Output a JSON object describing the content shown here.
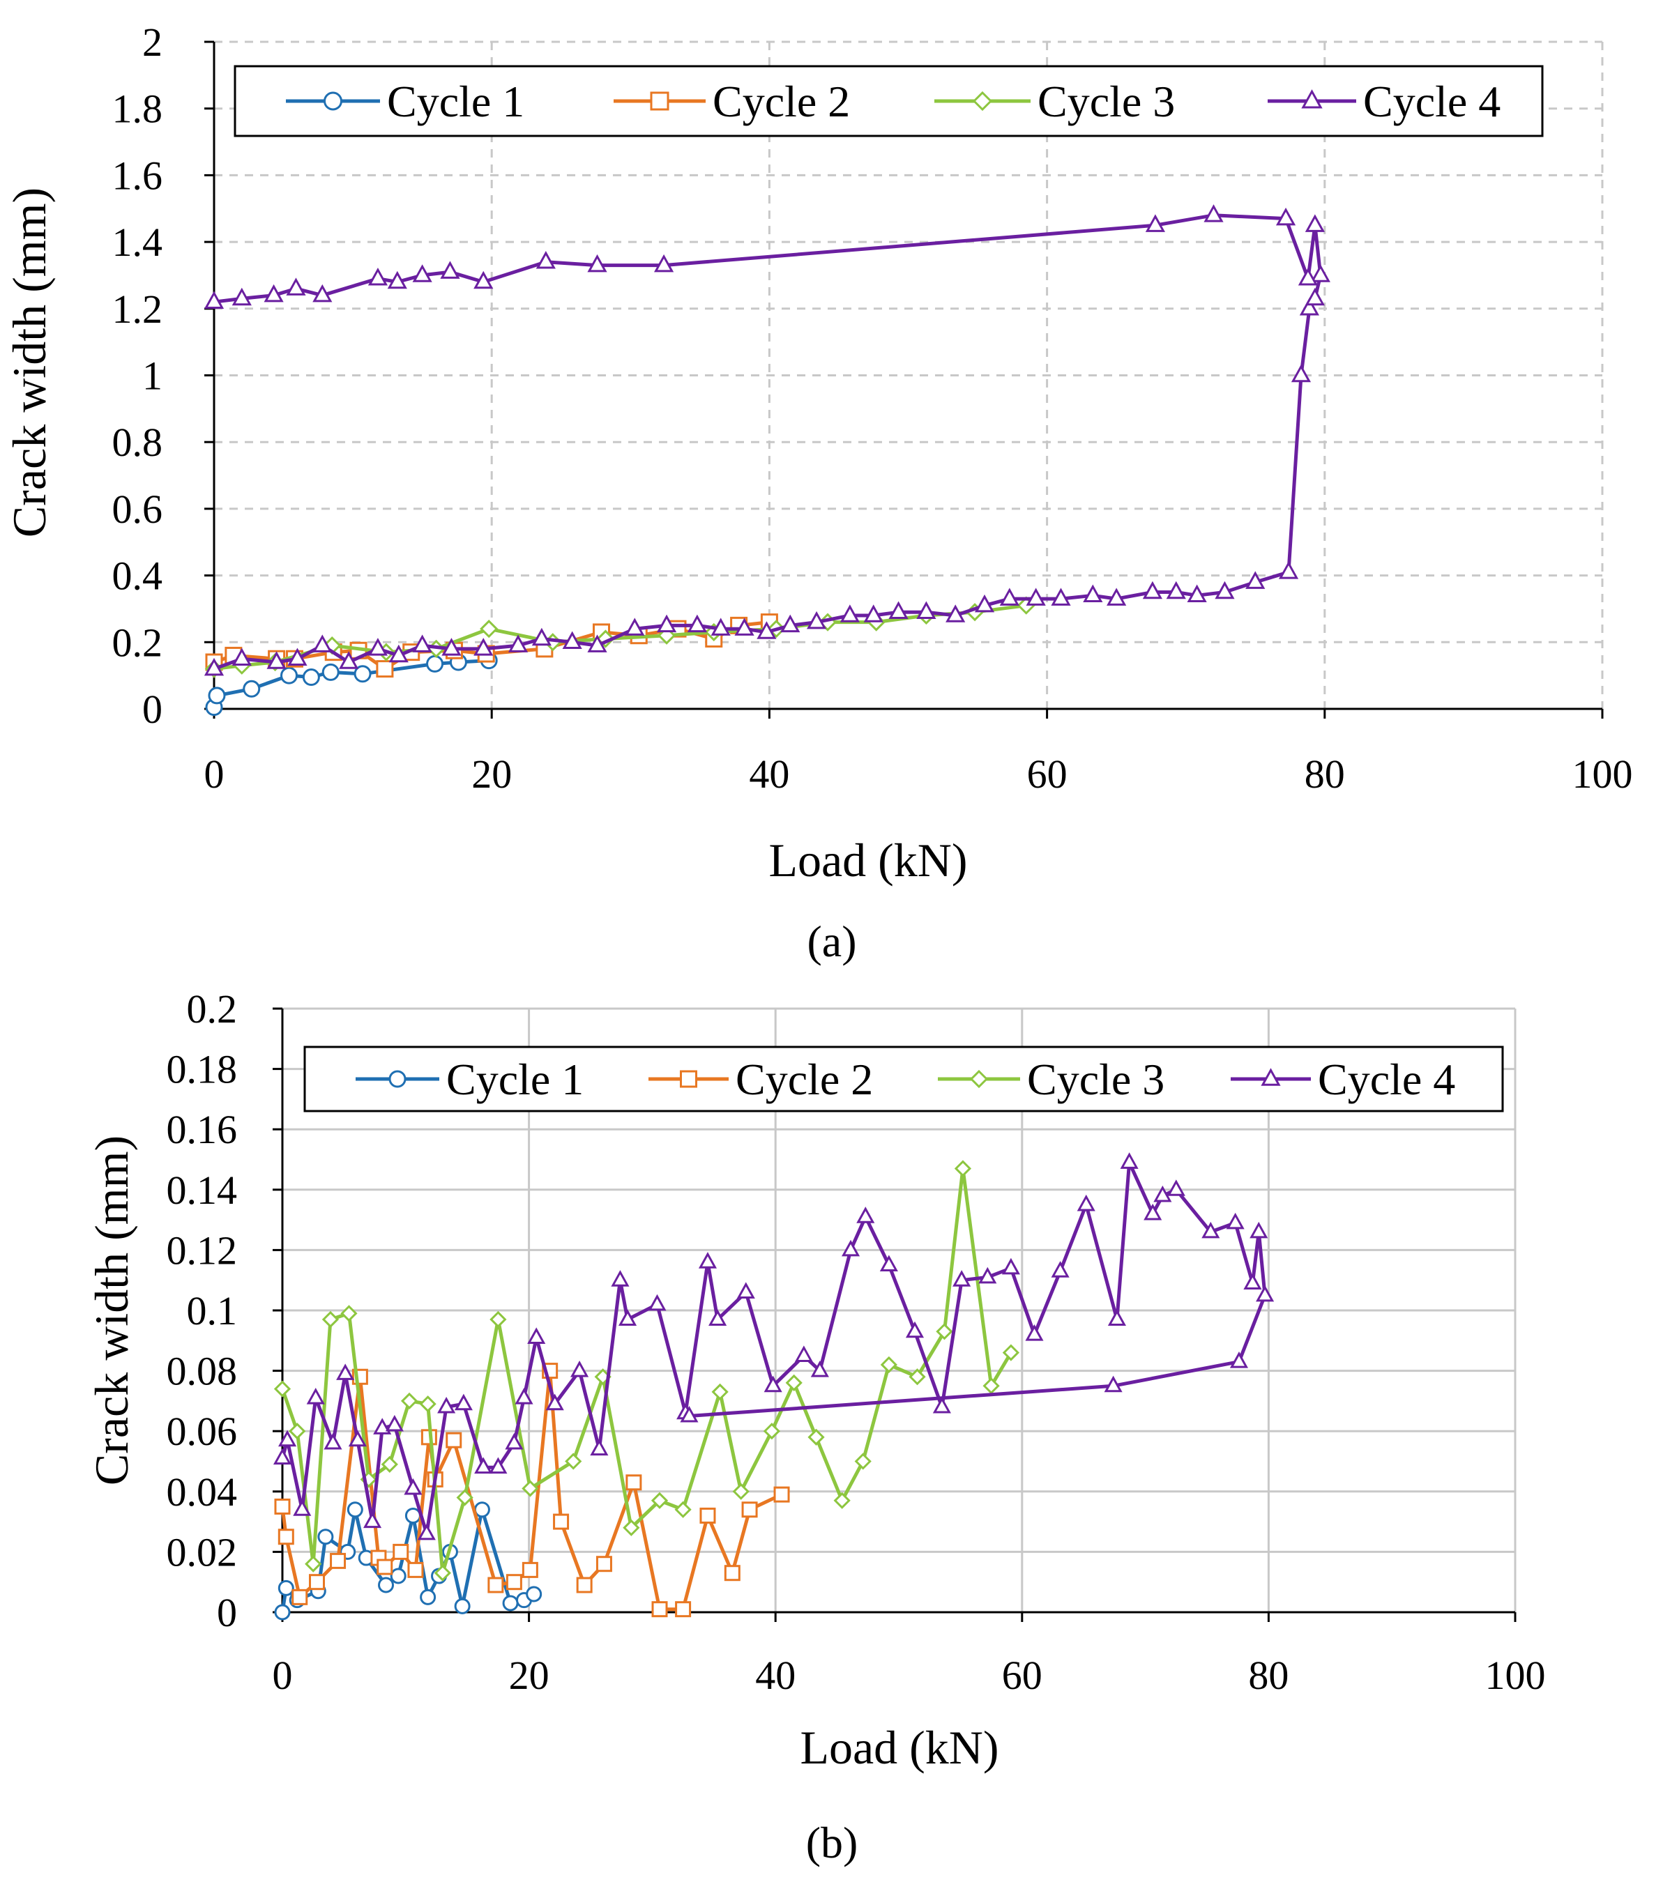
{
  "figure": {
    "panel_a_caption": "(a)",
    "panel_b_caption": "(b)"
  },
  "colors": {
    "Cycle 1": "#1F6FB2",
    "Cycle 2": "#E87722",
    "Cycle 3": "#8DC63F",
    "Cycle 4": "#6A1FA0"
  },
  "chart_data": [
    {
      "id": "a",
      "type": "line",
      "title": "",
      "xlabel": "Load (kN)",
      "ylabel": "Crack width (mm)",
      "xlim": [
        0,
        100
      ],
      "ylim": [
        0,
        2
      ],
      "xticks": [
        0,
        20,
        40,
        60,
        80,
        100
      ],
      "yticks": [
        0,
        0.2,
        0.4,
        0.6,
        0.8,
        1,
        1.2,
        1.4,
        1.6,
        1.8,
        2
      ],
      "ytick_labels": [
        "0",
        "0.2",
        "0.4",
        "0.6",
        "0.8",
        "1",
        "1.2",
        "1.4",
        "1.6",
        "1.8",
        "2"
      ],
      "xtick_labels": [
        "0",
        "20",
        "40",
        "60",
        "80",
        "100"
      ],
      "grid": "dashed",
      "legend": "top",
      "series": [
        {
          "name": "Cycle 1",
          "marker": "circle",
          "x": [
            0,
            0.2,
            2.7,
            5.4,
            7,
            8.4,
            10.7,
            15.9,
            17.6,
            19.8
          ],
          "y": [
            0.005,
            0.04,
            0.06,
            0.1,
            0.095,
            0.11,
            0.105,
            0.135,
            0.14,
            0.145
          ]
        },
        {
          "name": "Cycle 2",
          "marker": "square",
          "x": [
            0,
            1.4,
            4.5,
            5.8,
            8.6,
            10.4,
            12.3,
            14.2,
            17.3,
            19.6,
            23.8,
            27.9,
            30.6,
            33.4,
            36,
            37.8,
            40
          ],
          "y": [
            0.14,
            0.16,
            0.15,
            0.15,
            0.17,
            0.175,
            0.12,
            0.17,
            0.175,
            0.165,
            0.18,
            0.23,
            0.22,
            0.24,
            0.21,
            0.25,
            0.26
          ]
        },
        {
          "name": "Cycle 3",
          "marker": "diamond",
          "x": [
            0,
            2,
            4.4,
            8.5,
            12.4,
            16,
            19.8,
            24.4,
            28.2,
            32.6,
            36,
            40.5,
            44.2,
            47.7,
            51.3,
            54.8,
            58.5
          ],
          "y": [
            0.12,
            0.13,
            0.14,
            0.19,
            0.17,
            0.18,
            0.24,
            0.2,
            0.21,
            0.22,
            0.23,
            0.24,
            0.26,
            0.26,
            0.28,
            0.29,
            0.31
          ]
        },
        {
          "name": "Cycle 4",
          "marker": "triangle",
          "x": [
            0,
            2,
            4.5,
            6,
            7.8,
            9.7,
            11.8,
            13.3,
            15,
            17.1,
            19.4,
            21.9,
            23.6,
            25.8,
            27.6,
            30.3,
            32.6,
            34.8,
            36.5,
            38.2,
            39.8,
            41.5,
            43.4,
            45.8,
            47.5,
            49.3,
            51.3,
            53.4,
            55.5,
            57.3,
            59.2,
            61,
            63.3,
            65,
            67.6,
            69.3,
            70.8,
            72.8,
            75,
            77.4,
            78.3,
            78.9,
            79.3,
            79.7,
            79.3,
            78.8,
            77.2,
            72,
            67.8,
            32.4,
            27.6,
            23.9,
            19.4,
            17,
            15,
            13.2,
            11.8,
            7.8,
            5.9,
            4.3,
            2,
            0
          ],
          "y": [
            0.12,
            0.15,
            0.14,
            0.15,
            0.19,
            0.14,
            0.18,
            0.16,
            0.19,
            0.18,
            0.18,
            0.19,
            0.21,
            0.2,
            0.19,
            0.24,
            0.25,
            0.25,
            0.24,
            0.24,
            0.23,
            0.25,
            0.26,
            0.28,
            0.28,
            0.29,
            0.29,
            0.28,
            0.31,
            0.33,
            0.33,
            0.33,
            0.34,
            0.33,
            0.35,
            0.35,
            0.34,
            0.35,
            0.38,
            0.41,
            1.0,
            1.2,
            1.23,
            1.3,
            1.45,
            1.29,
            1.47,
            1.48,
            1.45,
            1.33,
            1.33,
            1.34,
            1.28,
            1.31,
            1.3,
            1.28,
            1.29,
            1.24,
            1.26,
            1.24,
            1.23,
            1.22
          ]
        }
      ]
    },
    {
      "id": "b",
      "type": "line",
      "title": "",
      "xlabel": "Load (kN)",
      "ylabel": "Crack width (mm)",
      "xlim": [
        0,
        100
      ],
      "ylim": [
        0,
        0.2
      ],
      "xticks": [
        0,
        20,
        40,
        60,
        80,
        100
      ],
      "yticks": [
        0,
        0.02,
        0.04,
        0.06,
        0.08,
        0.1,
        0.12,
        0.14,
        0.16,
        0.18,
        0.2
      ],
      "ytick_labels": [
        "0",
        "0.02",
        "0.04",
        "0.06",
        "0.08",
        "0.1",
        "0.12",
        "0.14",
        "0.16",
        "0.18",
        "0.2"
      ],
      "xtick_labels": [
        "0",
        "20",
        "40",
        "60",
        "80",
        "100"
      ],
      "grid": "solid",
      "legend": "top",
      "series": [
        {
          "name": "Cycle 1",
          "marker": "circle",
          "x": [
            0,
            0.3,
            1.2,
            2.9,
            3.5,
            5.3,
            5.9,
            6.8,
            8.4,
            9.4,
            10.6,
            11.8,
            12.7,
            13.6,
            14.6,
            16.2,
            18.5,
            19.6,
            20.4
          ],
          "y": [
            0.0,
            0.008,
            0.004,
            0.007,
            0.025,
            0.02,
            0.034,
            0.018,
            0.009,
            0.012,
            0.032,
            0.005,
            0.012,
            0.02,
            0.002,
            0.034,
            0.003,
            0.004,
            0.006
          ]
        },
        {
          "name": "Cycle 2",
          "marker": "square",
          "x": [
            0,
            0.3,
            1.4,
            2.8,
            4.5,
            6.3,
            7.8,
            8.3,
            9.6,
            10.8,
            11.9,
            12.4,
            13.9,
            17.3,
            18.8,
            20.1,
            21.7,
            22.6,
            24.5,
            26.1,
            28.5,
            30.6,
            32.5,
            34.5,
            36.5,
            37.9,
            40.5
          ],
          "y": [
            0.035,
            0.025,
            0.005,
            0.01,
            0.017,
            0.078,
            0.018,
            0.015,
            0.02,
            0.014,
            0.058,
            0.044,
            0.057,
            0.009,
            0.01,
            0.014,
            0.08,
            0.03,
            0.009,
            0.016,
            0.043,
            0.001,
            0.001,
            0.032,
            0.013,
            0.034,
            0.039
          ]
        },
        {
          "name": "Cycle 3",
          "marker": "diamond",
          "x": [
            0,
            1.2,
            2.5,
            3.9,
            5.4,
            7,
            8.7,
            10.3,
            11.8,
            13,
            14.8,
            17.5,
            20.1,
            23.6,
            26,
            28.3,
            30.6,
            32.5,
            35.5,
            37.2,
            39.7,
            41.5,
            43.3,
            45.4,
            47.1,
            49.2,
            51.5,
            53.7,
            55.2,
            57.5,
            59.1
          ],
          "y": [
            0.074,
            0.06,
            0.016,
            0.097,
            0.099,
            0.044,
            0.049,
            0.07,
            0.069,
            0.013,
            0.038,
            0.097,
            0.041,
            0.05,
            0.078,
            0.028,
            0.037,
            0.034,
            0.073,
            0.04,
            0.06,
            0.076,
            0.058,
            0.037,
            0.05,
            0.082,
            0.078,
            0.093,
            0.147,
            0.075,
            0.086
          ]
        },
        {
          "name": "Cycle 4",
          "marker": "triangle",
          "x": [
            0,
            0.4,
            1.6,
            2.7,
            4.1,
            5.1,
            6.1,
            7.3,
            8.1,
            9.1,
            10.6,
            11.7,
            13.3,
            14.7,
            16.3,
            17.5,
            18.8,
            19.6,
            20.6,
            22.1,
            24.1,
            25.7,
            27.4,
            28,
            30.4,
            32.7,
            34.5,
            35.3,
            37.6,
            39.8,
            42.3,
            43.6,
            46.1,
            47.3,
            49.2,
            51.3,
            53.5,
            55.1,
            57.2,
            59.1,
            61,
            63.1,
            65.2,
            67.7,
            68.7,
            70.6,
            71.4,
            72.5,
            75.3,
            77.3,
            78.7,
            79.2,
            79.7,
            77.6,
            67.4,
            33
          ],
          "y": [
            0.051,
            0.057,
            0.034,
            0.071,
            0.056,
            0.079,
            0.057,
            0.03,
            0.061,
            0.062,
            0.041,
            0.026,
            0.068,
            0.069,
            0.048,
            0.048,
            0.056,
            0.071,
            0.091,
            0.069,
            0.08,
            0.054,
            0.11,
            0.097,
            0.102,
            0.066,
            0.116,
            0.097,
            0.106,
            0.075,
            0.085,
            0.08,
            0.12,
            0.131,
            0.115,
            0.093,
            0.068,
            0.11,
            0.111,
            0.114,
            0.092,
            0.113,
            0.135,
            0.097,
            0.149,
            0.132,
            0.138,
            0.14,
            0.126,
            0.129,
            0.109,
            0.126,
            0.105,
            0.083,
            0.075,
            0.065
          ]
        }
      ]
    }
  ]
}
